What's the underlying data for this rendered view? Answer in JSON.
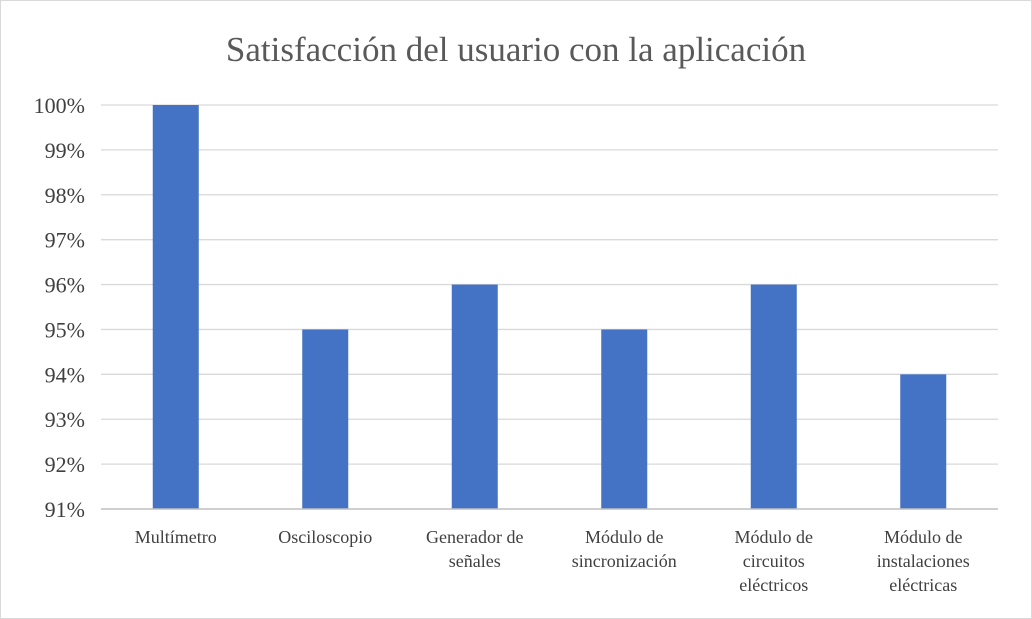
{
  "chart_data": {
    "type": "bar",
    "title": "Satisfacción del usuario con la aplicación",
    "categories": [
      [
        "Multímetro"
      ],
      [
        "Osciloscopio"
      ],
      [
        "Generador de",
        "señales"
      ],
      [
        "Módulo de",
        "sincronización"
      ],
      [
        "Módulo de",
        "circuitos",
        "eléctricos"
      ],
      [
        "Módulo de",
        "instalaciones",
        "eléctricas"
      ]
    ],
    "values": [
      100,
      95,
      96,
      95,
      96,
      94
    ],
    "ylim": [
      91,
      100
    ],
    "yticks": [
      91,
      92,
      93,
      94,
      95,
      96,
      97,
      98,
      99,
      100
    ],
    "ytick_suffix": "%",
    "grid": true,
    "legend": "none",
    "bar_color": "#4472c4",
    "grid_color": "#d9d9d9",
    "axis_color": "#bfbfbf"
  }
}
